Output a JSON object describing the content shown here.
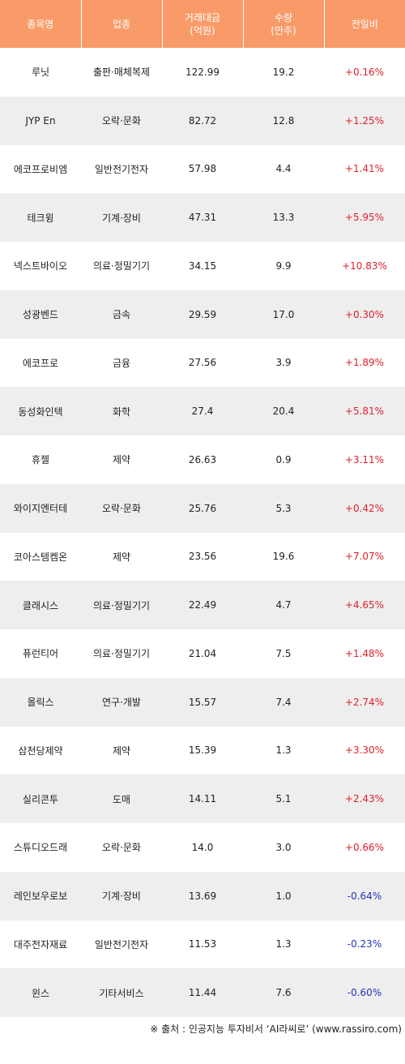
{
  "headers": {
    "name": "종목명",
    "sector": "업종",
    "amount_line1": "거래대금",
    "amount_line2": "(억원)",
    "volume_line1": "수량",
    "volume_line2": "(만주)",
    "change": "전일비"
  },
  "rows": [
    {
      "name": "루닛",
      "sector": "출판·매체복제",
      "amount": "122.99",
      "volume": "19.2",
      "change": "+0.16%",
      "dir": "up"
    },
    {
      "name": "JYP En",
      "sector": "오락·문화",
      "amount": "82.72",
      "volume": "12.8",
      "change": "+1.25%",
      "dir": "up"
    },
    {
      "name": "에코프로비엠",
      "sector": "일반전기전자",
      "amount": "57.98",
      "volume": "4.4",
      "change": "+1.41%",
      "dir": "up"
    },
    {
      "name": "테크윙",
      "sector": "기계·장비",
      "amount": "47.31",
      "volume": "13.3",
      "change": "+5.95%",
      "dir": "up"
    },
    {
      "name": "넥스트바이오",
      "sector": "의료·정밀기기",
      "amount": "34.15",
      "volume": "9.9",
      "change": "+10.83%",
      "dir": "up"
    },
    {
      "name": "성광벤드",
      "sector": "금속",
      "amount": "29.59",
      "volume": "17.0",
      "change": "+0.30%",
      "dir": "up"
    },
    {
      "name": "에코프로",
      "sector": "금융",
      "amount": "27.56",
      "volume": "3.9",
      "change": "+1.89%",
      "dir": "up"
    },
    {
      "name": "동성화인텍",
      "sector": "화학",
      "amount": "27.4",
      "volume": "20.4",
      "change": "+5.81%",
      "dir": "up"
    },
    {
      "name": "휴젤",
      "sector": "제약",
      "amount": "26.63",
      "volume": "0.9",
      "change": "+3.11%",
      "dir": "up"
    },
    {
      "name": "와이지엔터테",
      "sector": "오락·문화",
      "amount": "25.76",
      "volume": "5.3",
      "change": "+0.42%",
      "dir": "up"
    },
    {
      "name": "코아스템켐온",
      "sector": "제약",
      "amount": "23.56",
      "volume": "19.6",
      "change": "+7.07%",
      "dir": "up"
    },
    {
      "name": "클래시스",
      "sector": "의료·정밀기기",
      "amount": "22.49",
      "volume": "4.7",
      "change": "+4.65%",
      "dir": "up"
    },
    {
      "name": "퓨런티어",
      "sector": "의료·정밀기기",
      "amount": "21.04",
      "volume": "7.5",
      "change": "+1.48%",
      "dir": "up"
    },
    {
      "name": "올릭스",
      "sector": "연구·개발",
      "amount": "15.57",
      "volume": "7.4",
      "change": "+2.74%",
      "dir": "up"
    },
    {
      "name": "삼천당제약",
      "sector": "제약",
      "amount": "15.39",
      "volume": "1.3",
      "change": "+3.30%",
      "dir": "up"
    },
    {
      "name": "실리콘투",
      "sector": "도매",
      "amount": "14.11",
      "volume": "5.1",
      "change": "+2.43%",
      "dir": "up"
    },
    {
      "name": "스튜디오드래",
      "sector": "오락·문화",
      "amount": "14.0",
      "volume": "3.0",
      "change": "+0.66%",
      "dir": "up"
    },
    {
      "name": "레인보우로보",
      "sector": "기계·장비",
      "amount": "13.69",
      "volume": "1.0",
      "change": "-0.64%",
      "dir": "down"
    },
    {
      "name": "대주전자재료",
      "sector": "일반전기전자",
      "amount": "11.53",
      "volume": "1.3",
      "change": "-0.23%",
      "dir": "down"
    },
    {
      "name": "윈스",
      "sector": "기타서비스",
      "amount": "11.44",
      "volume": "7.6",
      "change": "-0.60%",
      "dir": "down"
    }
  ],
  "colors": {
    "header_bg": "#f99b69",
    "up": "#e0202c",
    "down": "#2334b5",
    "stripe": "#eeeeee"
  },
  "source": "※ 출처 : 인공지능 투자비서 ‘AI라씨로’ (www.rassiro.com)"
}
